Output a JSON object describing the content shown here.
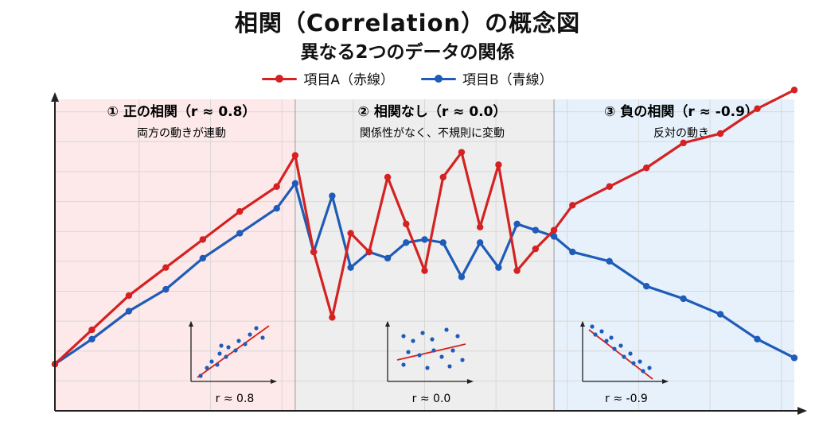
{
  "title": "相関（Correlation）の概念図",
  "subtitle": "異なる2つのデータの関係",
  "legend": {
    "a_label": "項目A（赤線）",
    "b_label": "項目B（青線）"
  },
  "colors": {
    "series_a": "#d42222",
    "series_b": "#1f5bb8",
    "panel_positive": "#fde9e9",
    "panel_none": "#eeeeee",
    "panel_negative": "#e6f1fc",
    "grid": "#d8d8d8",
    "axis": "#222222"
  },
  "panels": [
    {
      "title": "① 正の相関（r ≈ 0.8）",
      "subtitle": "両方の動きが連動",
      "inset_label": "r ≈ 0.8"
    },
    {
      "title": "② 相関なし（r ≈ 0.0）",
      "subtitle": "関係性がなく、不規則に変動",
      "inset_label": "r ≈ 0.0"
    },
    {
      "title": "③ 負の相関（r ≈ -0.9）",
      "subtitle": "反対の動き",
      "inset_label": "r ≈ -0.9"
    }
  ],
  "chart_data": {
    "type": "line",
    "grid": true,
    "xlim": [
      0,
      20
    ],
    "ylim": [
      0,
      10
    ],
    "series": [
      {
        "name": "項目A（赤線）",
        "x": [
          0,
          1,
          2,
          3,
          4,
          5,
          6,
          6.5,
          7,
          7.5,
          8,
          8.5,
          9,
          9.5,
          10,
          10.5,
          11,
          11.5,
          12,
          12.5,
          13,
          13.5,
          14,
          15,
          16,
          17,
          18,
          19,
          20
        ],
        "y": [
          1.5,
          2.6,
          3.7,
          4.6,
          5.5,
          6.4,
          7.2,
          8.2,
          5.1,
          3.0,
          5.7,
          5.1,
          7.5,
          6.0,
          4.5,
          7.5,
          8.3,
          5.9,
          7.9,
          4.5,
          5.2,
          5.8,
          6.6,
          7.2,
          7.8,
          8.6,
          8.9,
          9.7,
          10.3
        ]
      },
      {
        "name": "項目B（青線）",
        "x": [
          0,
          1,
          2,
          3,
          4,
          5,
          6,
          6.5,
          7,
          7.5,
          8,
          8.5,
          9,
          9.5,
          10,
          10.5,
          11,
          11.5,
          12,
          12.5,
          13,
          13.5,
          14,
          15,
          16,
          17,
          18,
          19,
          20
        ],
        "y": [
          1.5,
          2.3,
          3.2,
          3.9,
          4.9,
          5.7,
          6.5,
          7.3,
          5.1,
          6.9,
          4.6,
          5.1,
          4.9,
          5.4,
          5.5,
          5.4,
          4.3,
          5.4,
          4.6,
          6.0,
          5.8,
          5.6,
          5.1,
          4.8,
          4.0,
          3.6,
          3.1,
          2.3,
          1.7
        ]
      }
    ]
  }
}
